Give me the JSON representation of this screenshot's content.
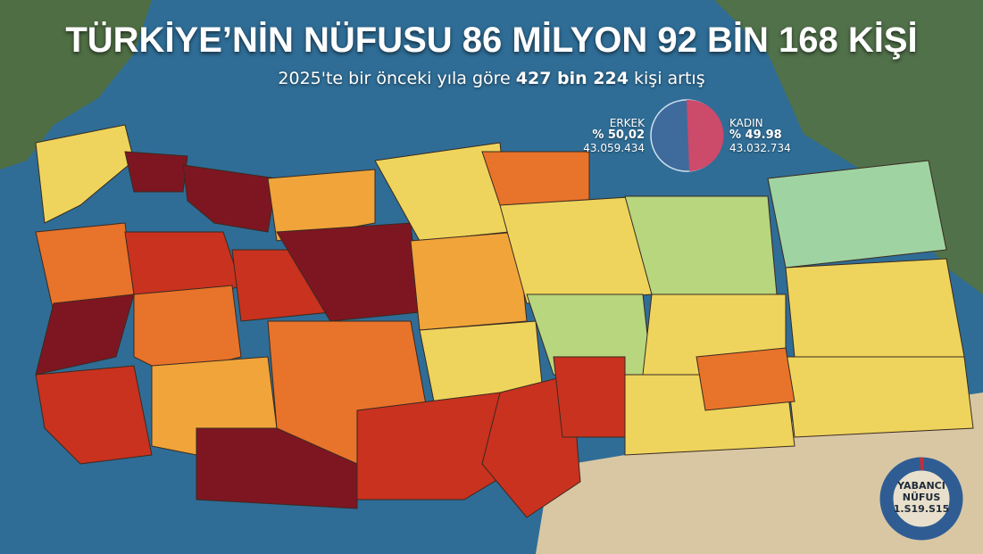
{
  "title": "TÜRKİYE’NİN NÜFUSU 86 MİLYON 92 BİN 168 KİŞİ",
  "subtitle": {
    "prefix": "2025'te bir önceki yıla göre",
    "highlight": "427 bin 224",
    "suffix": "kişi artış"
  },
  "gender": {
    "male": {
      "label": "ERKEK",
      "percent": "% 50,02",
      "count": "43.059.434",
      "color": "#3f6a9c"
    },
    "female": {
      "label": "KADIN",
      "percent": "% 49.98",
      "count": "43.032.734",
      "color": "#cc4a6a"
    }
  },
  "foreign": {
    "line1": "YABANCI",
    "line2": "NÜFUS",
    "count": "1.S19.S15",
    "ring_color": "#2f5d93"
  },
  "legend_colors": {
    "very_high": "#7e1622",
    "high": "#c8321f",
    "mid_high": "#e8732a",
    "mid": "#f0a43a",
    "low": "#eed45c",
    "very_low": "#b7d67e",
    "lowest": "#9fd4a2"
  },
  "sea_color": "#2f6d96"
}
